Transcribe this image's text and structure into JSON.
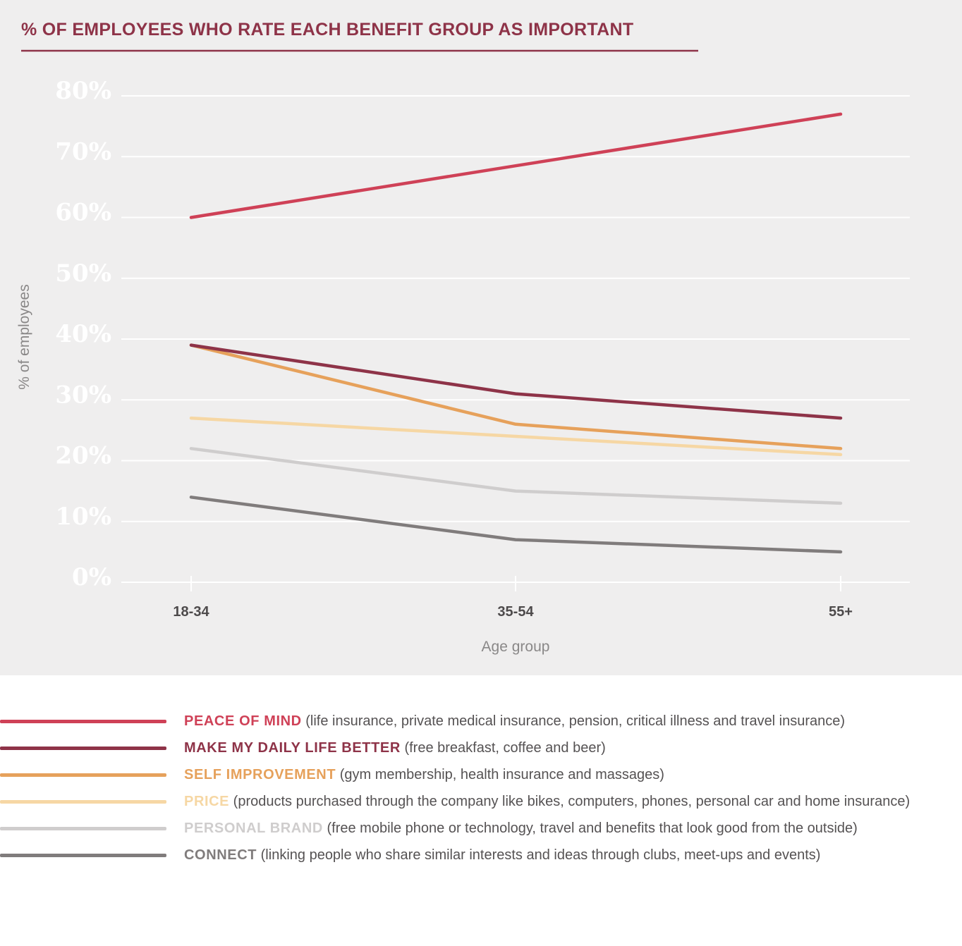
{
  "chart_data": {
    "type": "line",
    "title": "% OF EMPLOYEES WHO RATE EACH BENEFIT GROUP AS IMPORTANT",
    "xlabel": "Age group",
    "ylabel": "% of employees",
    "categories": [
      "18-34",
      "35-54",
      "55+"
    ],
    "yticks": [
      "0%",
      "10%",
      "20%",
      "30%",
      "40%",
      "50%",
      "60%",
      "70%",
      "80%"
    ],
    "ylim": [
      0,
      80
    ],
    "grid": true,
    "legend_position": "bottom",
    "series": [
      {
        "name": "PEACE OF MIND",
        "description": "(life insurance, private medical insurance, pension, critical illness and travel insurance)",
        "color": "#cf4157",
        "values": [
          60,
          68.5,
          77
        ]
      },
      {
        "name": "MAKE MY DAILY LIFE BETTER",
        "description": "(free breakfast, coffee and beer)",
        "color": "#8e3348",
        "values": [
          39,
          31,
          27
        ]
      },
      {
        "name": "SELF IMPROVEMENT",
        "description": "(gym membership, health insurance and massages)",
        "color": "#e6a15b",
        "values": [
          39,
          26,
          22
        ]
      },
      {
        "name": "PRICE",
        "description": "(products purchased through the company like bikes, computers, phones, personal car and home insurance)",
        "color": "#f6d7a4",
        "values": [
          27,
          24,
          21
        ]
      },
      {
        "name": "PERSONAL BRAND",
        "description": "(free mobile phone or technology, travel and benefits that look good from the outside)",
        "color": "#cfcdcd",
        "values": [
          22,
          15,
          13
        ]
      },
      {
        "name": "CONNECT",
        "description": "(linking people who share similar interests and ideas through clubs, meet-ups and events)",
        "color": "#807c7c",
        "values": [
          14,
          7,
          5
        ]
      }
    ]
  }
}
